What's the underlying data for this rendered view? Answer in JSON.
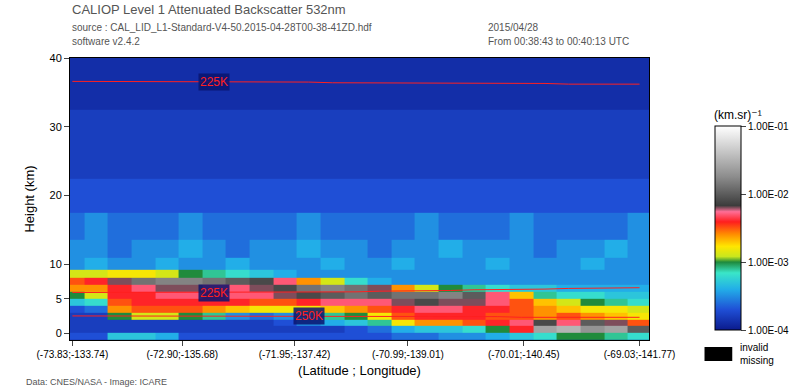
{
  "chart_data": {
    "type": "heatmap",
    "title": "CALIOP Level 1 Attenuated Backscatter 532nm",
    "subtitle": [
      "source : CAL_LID_L1-Standard-V4-50.2015-04-28T00-38-41ZD.hdf",
      "software v2.4.2"
    ],
    "annotations": [
      "2015/04/28",
      "From 00:38:43 to 00:40:13 UTC",
      "Data: CNES/NASA - Image: ICARE"
    ],
    "mask_legend": [
      "invalid",
      "missing"
    ],
    "x_label": "(Latitude ; Longitude)",
    "y_label": "Height (km)",
    "grid": false,
    "xlim": [
      -73.85,
      -68.95
    ],
    "xticks": [
      {
        "value": -73.83,
        "label": "(-73.83;-133.74)"
      },
      {
        "value": -72.9,
        "label": "(-72.90;-135.68)"
      },
      {
        "value": -71.95,
        "label": "(-71.95;-137.42)"
      },
      {
        "value": -70.99,
        "label": "(-70.99;-139.01)"
      },
      {
        "value": -70.01,
        "label": "(-70.01;-140.45)"
      },
      {
        "value": -69.03,
        "label": "(-69.03;-141.77)"
      }
    ],
    "ylim": [
      -1,
      40
    ],
    "yticks": [
      0,
      5,
      10,
      20,
      30,
      40
    ],
    "x": [
      -73.83,
      -73.63,
      -73.43,
      -73.23,
      -73.03,
      -72.83,
      -72.63,
      -72.43,
      -72.23,
      -72.03,
      -71.83,
      -71.63,
      -71.43,
      -71.23,
      -71.03,
      -70.83,
      -70.63,
      -70.43,
      -70.23,
      -70.03,
      -69.83,
      -69.63,
      -69.43,
      -69.23,
      -69.03
    ],
    "y": [
      -0.5,
      0.5,
      1.5,
      2.5,
      3.5,
      4.5,
      5.5,
      6.5,
      7.5,
      8.5,
      10,
      12,
      15,
      20,
      25,
      30,
      35,
      40
    ],
    "cells": [
      [
        0.0002,
        0.0002,
        0.0005,
        0.0005,
        0.0004,
        0.0002,
        0.0002,
        0.0002,
        0.0002,
        0.0002,
        0.0002,
        0.0002,
        0.0002,
        0.0002,
        0.00025,
        0.00025,
        0.00032,
        0.00032,
        0.0004,
        0.0005,
        0.00063,
        0.001,
        0.001,
        0.00079,
        0.00063
      ],
      [
        0.00016,
        0.00016,
        0.00016,
        0.00016,
        0.00016,
        0.00016,
        0.00016,
        0.00016,
        0.00016,
        0.00016,
        0.00016,
        0.00016,
        0.0002,
        0.00025,
        0.0004,
        0.0005,
        0.0005,
        0.00063,
        0.001,
        0.004,
        0.025,
        0.032,
        0.02,
        0.025,
        0.01
      ],
      [
        0.00016,
        0.00016,
        0.00016,
        0.00016,
        0.00016,
        0.00016,
        0.00016,
        0.00016,
        0.00016,
        0.0002,
        0.00032,
        0.0004,
        0.0005,
        0.00079,
        0.0016,
        0.0025,
        0.0025,
        0.0032,
        0.004,
        0.005,
        0.0079,
        0.005,
        0.01,
        0.0063,
        0.0032
      ],
      [
        0.00016,
        0.00016,
        0.001,
        0.0013,
        0.0013,
        0.001,
        0.00079,
        0.00032,
        0.00025,
        0.00032,
        0.00063,
        0.00079,
        0.001,
        0.0016,
        0.0032,
        0.004,
        0.004,
        0.004,
        0.0032,
        0.0032,
        0.0025,
        0.0032,
        0.0025,
        0.002,
        0.0016
      ],
      [
        0.0002,
        0.00025,
        0.0025,
        0.0032,
        0.0032,
        0.0032,
        0.0025,
        0.002,
        0.0016,
        0.0016,
        0.0016,
        0.002,
        0.0025,
        0.0032,
        0.004,
        0.005,
        0.005,
        0.004,
        0.004,
        0.0032,
        0.0025,
        0.002,
        0.0016,
        0.0016,
        0.0013
      ],
      [
        0.0005,
        0.00063,
        0.0032,
        0.004,
        0.004,
        0.004,
        0.004,
        0.004,
        0.0032,
        0.0032,
        0.004,
        0.005,
        0.005,
        0.005,
        0.0063,
        0.0079,
        0.0063,
        0.0063,
        0.005,
        0.0032,
        0.002,
        0.0013,
        0.001,
        0.00079,
        0.00063
      ],
      [
        0.001,
        0.0013,
        0.004,
        0.004,
        0.005,
        0.005,
        0.004,
        0.005,
        0.005,
        0.0063,
        0.0079,
        0.01,
        0.013,
        0.01,
        0.013,
        0.013,
        0.016,
        0.01,
        0.005,
        0.002,
        0.00079,
        0.00063,
        0.00063,
        0.0005,
        0.0005
      ],
      [
        0.0025,
        0.0025,
        0.004,
        0.005,
        0.0063,
        0.0063,
        0.005,
        0.005,
        0.0063,
        0.0079,
        0.013,
        0.016,
        0.013,
        0.0063,
        0.0025,
        0.0013,
        0.001,
        0.00079,
        0.00063,
        0.0005,
        0.0005,
        0.0004,
        0.0004,
        0.0004,
        0.0004
      ],
      [
        0.0032,
        0.004,
        0.0063,
        0.013,
        0.016,
        0.016,
        0.013,
        0.01,
        0.0079,
        0.005,
        0.0025,
        0.0013,
        0.00063,
        0.0004,
        0.00032,
        0.00032,
        0.00032,
        0.00032,
        0.00032,
        0.00032,
        0.00032,
        0.00032,
        0.00032,
        0.00032,
        0.00032
      ],
      [
        0.0013,
        0.0013,
        0.0016,
        0.0016,
        0.0013,
        0.001,
        0.00079,
        0.00063,
        0.0005,
        0.0004,
        0.00032,
        0.00032,
        0.00032,
        0.00032,
        0.00032,
        0.00032,
        0.00032,
        0.00032,
        0.00032,
        0.00032,
        0.00032,
        0.00032,
        0.00032,
        0.00032,
        0.00032
      ],
      [
        0.00032,
        0.0004,
        0.00032,
        0.00032,
        0.0004,
        0.00032,
        0.00032,
        0.0004,
        0.00032,
        0.00032,
        0.00032,
        0.0004,
        0.00032,
        0.00032,
        0.0004,
        0.00032,
        0.00032,
        0.00032,
        0.0004,
        0.00032,
        0.00032,
        0.00032,
        0.0004,
        0.00032,
        0.00032
      ],
      [
        0.00032,
        0.00032,
        0.00025,
        0.00032,
        0.00032,
        0.0004,
        0.00032,
        0.00025,
        0.00032,
        0.00032,
        0.0004,
        0.00032,
        0.00032,
        0.00025,
        0.00032,
        0.00032,
        0.0004,
        0.00032,
        0.00032,
        0.00032,
        0.00025,
        0.00032,
        0.00032,
        0.0004,
        0.00032
      ],
      [
        0.00025,
        0.00032,
        0.00025,
        0.00025,
        0.00025,
        0.00032,
        0.00025,
        0.00025,
        0.00025,
        0.00025,
        0.00032,
        0.00025,
        0.00025,
        0.00025,
        0.00025,
        0.00032,
        0.00025,
        0.00025,
        0.00025,
        0.00032,
        0.00025,
        0.00025,
        0.00025,
        0.00025,
        0.00032
      ],
      [
        0.0002,
        0.0002,
        0.0002,
        0.0002,
        0.0002,
        0.0002,
        0.0002,
        0.0002,
        0.0002,
        0.0002,
        0.0002,
        0.0002,
        0.0002,
        0.0002,
        0.0002,
        0.0002,
        0.0002,
        0.0002,
        0.0002,
        0.0002,
        0.0002,
        0.0002,
        0.0002,
        0.0002,
        0.0002
      ],
      [
        0.00016,
        0.00016,
        0.00016,
        0.00016,
        0.00016,
        0.00016,
        0.00016,
        0.00016,
        0.00016,
        0.00016,
        0.00016,
        0.00016,
        0.00016,
        0.00016,
        0.00016,
        0.00016,
        0.00016,
        0.00016,
        0.00016,
        0.00016,
        0.00016,
        0.00016,
        0.00016,
        0.00016,
        0.00016
      ],
      [
        0.00016,
        0.00016,
        0.00016,
        0.00016,
        0.00016,
        0.00016,
        0.00016,
        0.00016,
        0.00016,
        0.00016,
        0.00016,
        0.00016,
        0.00016,
        0.00016,
        0.00016,
        0.00016,
        0.00016,
        0.00016,
        0.00016,
        0.00016,
        0.00016,
        0.00016,
        0.00016,
        0.00016,
        0.00016
      ],
      [
        0.00013,
        0.00013,
        0.00013,
        0.00013,
        0.00013,
        0.00013,
        0.00013,
        0.00013,
        0.00013,
        0.00013,
        0.00013,
        0.00013,
        0.00013,
        0.00013,
        0.00013,
        0.00013,
        0.00013,
        0.00013,
        0.00013,
        0.00013,
        0.00013,
        0.00013,
        0.00013,
        0.00013,
        0.00013
      ],
      [
        0.00013,
        0.00013,
        0.00013,
        0.00013,
        0.00013,
        0.00013,
        0.00013,
        0.00013,
        0.00013,
        0.00013,
        0.00013,
        0.00013,
        0.00013,
        0.00013,
        0.00013,
        0.00013,
        0.00013,
        0.00013,
        0.00013,
        0.00013,
        0.00013,
        0.00013,
        0.00013,
        0.00013,
        0.00013
      ]
    ],
    "colorbar": {
      "title": "(km.sr)⁻¹",
      "log": true,
      "range": [
        0.0001,
        0.1
      ],
      "ticks": [
        {
          "value": 0.0001,
          "label": "1.00E-04"
        },
        {
          "value": 0.001,
          "label": "1.00E-03"
        },
        {
          "value": 0.01,
          "label": "1.00E-02"
        },
        {
          "value": 0.1,
          "label": "1.00E-01"
        }
      ]
    },
    "isotherms": [
      {
        "label": "225K",
        "color": "#ff2020",
        "values": [
          36.6,
          36.6,
          36.6,
          36.6,
          36.5,
          36.5,
          36.5,
          36.5,
          36.5,
          36.5,
          36.5,
          36.4,
          36.4,
          36.4,
          36.4,
          36.4,
          36.3,
          36.3,
          36.3,
          36.3,
          36.3,
          36.2,
          36.2,
          36.2,
          36.2
        ]
      },
      {
        "label": "225K",
        "color": "#ff2020",
        "values": [
          5.9,
          5.9,
          5.9,
          5.9,
          5.9,
          5.9,
          5.9,
          5.9,
          5.9,
          5.9,
          5.9,
          6.0,
          6.0,
          6.1,
          6.1,
          6.2,
          6.2,
          6.3,
          6.3,
          6.4,
          6.4,
          6.5,
          6.5,
          6.6,
          6.6
        ]
      },
      {
        "label": "250K",
        "color": "#ff2020",
        "values": [
          2.5,
          2.5,
          2.5,
          2.5,
          2.5,
          2.5,
          2.5,
          2.5,
          2.5,
          2.5,
          2.5,
          2.5,
          2.5,
          2.4,
          2.4,
          2.4,
          2.4,
          2.4,
          2.4,
          2.3,
          2.3,
          2.3,
          2.3,
          2.3,
          2.3
        ]
      }
    ]
  }
}
